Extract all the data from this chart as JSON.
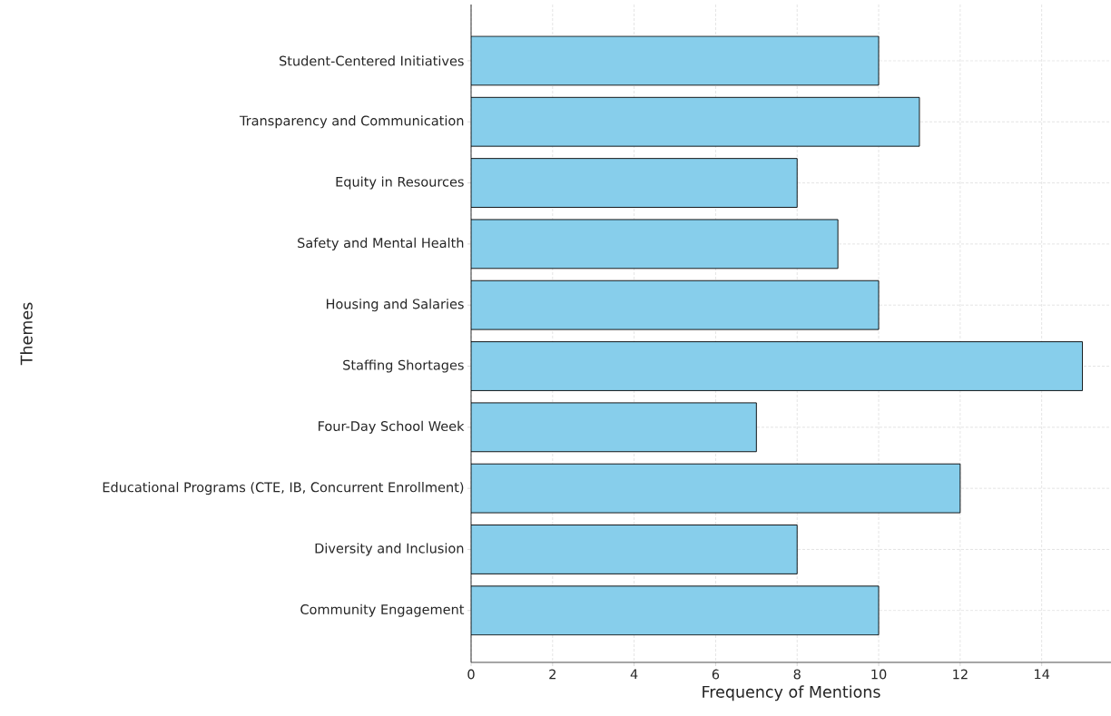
{
  "chart_data": {
    "type": "bar",
    "orientation": "horizontal",
    "xlabel": "Frequency of Mentions",
    "ylabel": "Themes",
    "categories": [
      "Student-Centered Initiatives",
      "Transparency and Communication",
      "Equity in Resources",
      "Safety and Mental Health",
      "Housing and Salaries",
      "Staffing Shortages",
      "Four-Day School Week",
      "Educational Programs (CTE, IB, Concurrent Enrollment)",
      "Diversity and Inclusion",
      "Community Engagement"
    ],
    "values": [
      10,
      11,
      8,
      9,
      10,
      15,
      7,
      12,
      8,
      10
    ],
    "color": "#87ceeb",
    "xlim": [
      0,
      15.7
    ],
    "xticks": [
      0,
      2,
      4,
      6,
      8,
      10,
      12,
      14
    ],
    "grid": true
  }
}
